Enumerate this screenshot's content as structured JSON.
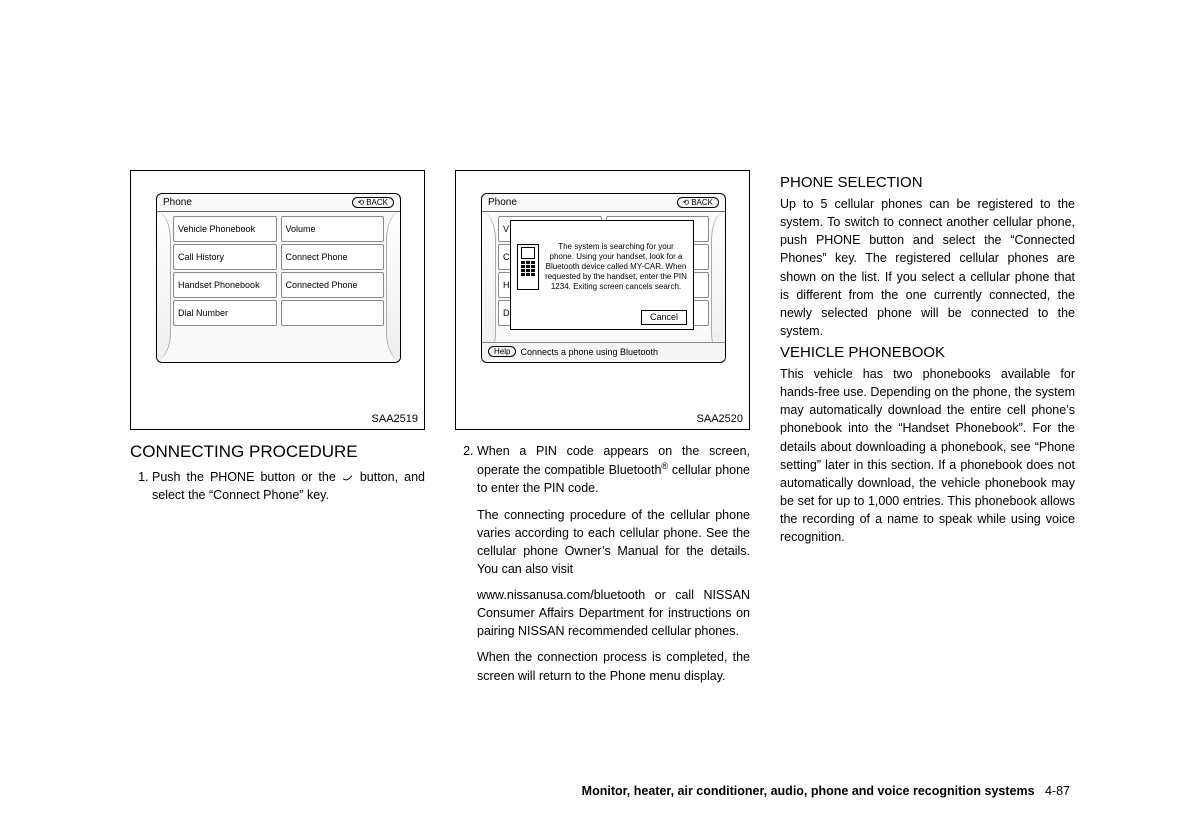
{
  "fig1": {
    "caption": "SAA2519",
    "title": "Phone",
    "back": "BACK",
    "leftCol": [
      "Vehicle Phonebook",
      "Call History",
      "Handset Phonebook",
      "Dial Number"
    ],
    "rightCol": [
      "Volume",
      "Connect Phone",
      "Connected Phone",
      ""
    ]
  },
  "fig2": {
    "caption": "SAA2520",
    "title": "Phone",
    "back": "BACK",
    "dialogText": "The system is searching for your phone. Using your handset, look for a Bluetooth device called MY-CAR. When requested by the handset, enter the PIN 1234. Exiting screen cancels search.",
    "cancel": "Cancel",
    "help": "Help",
    "helpMsg": "Connects a phone using Bluetooth"
  },
  "col1": {
    "heading": "CONNECTING PROCEDURE",
    "step1a": "Push the PHONE button or the ",
    "step1b": " button, and select the “Connect Phone” key."
  },
  "col2": {
    "step2p1": "When a PIN code appears on the screen, operate the compatible Bluetooth",
    "step2p1b": " cellular phone to enter the PIN code.",
    "step2p2": "The connecting procedure of the cellular phone varies according to each cellular phone. See the cellular phone Owner’s Manual for the details. You can also visit",
    "step2p3": "www.nissanusa.com/bluetooth or call NISSAN Consumer Affairs Department for instructions on pairing NISSAN recommended cellular phones.",
    "step2p4": "When the connection process is completed, the screen will return to the Phone menu display."
  },
  "col3": {
    "h1": "PHONE SELECTION",
    "p1": "Up to 5 cellular phones can be registered to the system. To switch to connect another cellular phone, push PHONE button and select the “Connected Phones” key. The registered cellular phones are shown on the list. If you select a cellular phone that is different from the one currently connected, the newly selected phone will be connected to the system.",
    "h2": "VEHICLE PHONEBOOK",
    "p2": "This vehicle has two phonebooks available for hands-free use. Depending on the phone, the system may automatically download the entire cell phone’s phonebook into the “Handset Phonebook”. For the details about downloading a phonebook, see “Phone setting” later in this section. If a phonebook does not automatically download, the vehicle phonebook may be set for up to 1,000 entries. This phonebook allows the recording of a name to speak while using voice recognition."
  },
  "footer": {
    "section": "Monitor, heater, air conditioner, audio, phone and voice recognition systems",
    "page": "4-87"
  }
}
